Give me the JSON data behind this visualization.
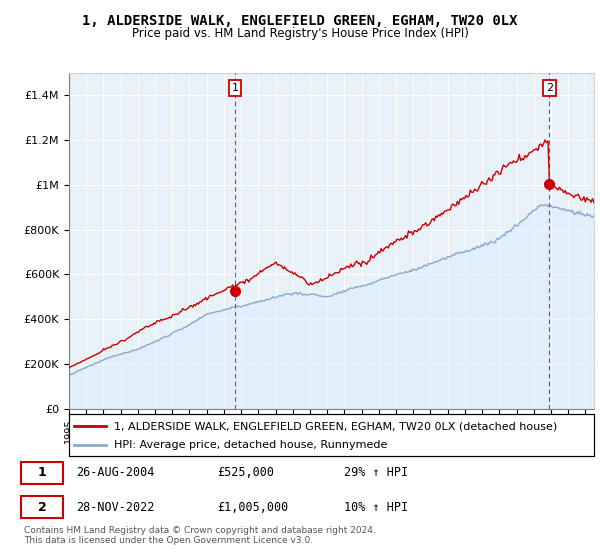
{
  "title": "1, ALDERSIDE WALK, ENGLEFIELD GREEN, EGHAM, TW20 0LX",
  "subtitle": "Price paid vs. HM Land Registry's House Price Index (HPI)",
  "xlim_start": 1995.0,
  "xlim_end": 2025.5,
  "ylim": [
    0,
    1500000
  ],
  "yticks": [
    0,
    200000,
    400000,
    600000,
    800000,
    1000000,
    1200000,
    1400000
  ],
  "ytick_labels": [
    "£0",
    "£200K",
    "£400K",
    "£600K",
    "£800K",
    "£1M",
    "£1.2M",
    "£1.4M"
  ],
  "sale1_x": 2004.65,
  "sale1_y": 525000,
  "sale2_x": 2022.91,
  "sale2_y": 1005000,
  "red_color": "#cc0000",
  "blue_color": "#88aacc",
  "blue_fill": "#ddeeff",
  "legend_red": "1, ALDERSIDE WALK, ENGLEFIELD GREEN, EGHAM, TW20 0LX (detached house)",
  "legend_blue": "HPI: Average price, detached house, Runnymede",
  "sale1_date": "26-AUG-2004",
  "sale1_price": "£525,000",
  "sale1_hpi": "29% ↑ HPI",
  "sale2_date": "28-NOV-2022",
  "sale2_price": "£1,005,000",
  "sale2_hpi": "10% ↑ HPI",
  "footer1": "Contains HM Land Registry data © Crown copyright and database right 2024.",
  "footer2": "This data is licensed under the Open Government Licence v3.0.",
  "bg_color": "#e8f0f8"
}
